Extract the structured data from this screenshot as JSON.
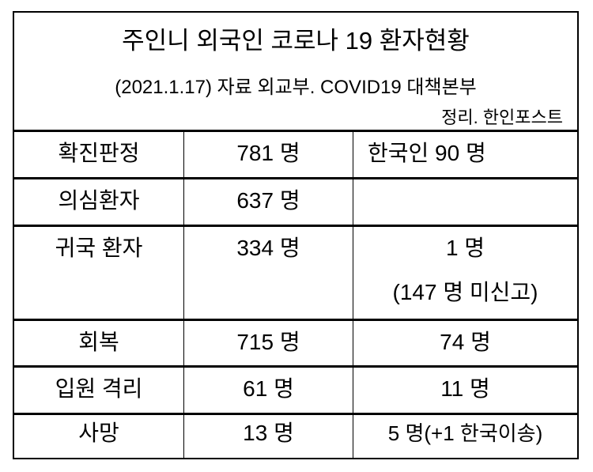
{
  "header": {
    "title": "주인니 외국인 코로나 19 환자현황",
    "subtitle": "(2021.1.17) 자료 외교부. COVID19 대책본부",
    "credit": "정리. 한인포스트"
  },
  "rows": [
    {
      "label": "확진판정",
      "total": "781 명",
      "korean": [
        "한국인  90 명"
      ]
    },
    {
      "label": "의심환자",
      "total": "637 명",
      "korean": []
    },
    {
      "label": "귀국 환자",
      "total": "334 명",
      "korean": [
        "1 명",
        "(147 명 미신고)"
      ]
    },
    {
      "label": "회복",
      "total": "715 명",
      "korean": [
        "74 명"
      ]
    },
    {
      "label": "입원 격리",
      "total": "61 명",
      "korean": [
        "11 명"
      ]
    },
    {
      "label": "사망",
      "total": "13 명",
      "korean": [
        "5 명(+1 한국이송)"
      ]
    }
  ]
}
